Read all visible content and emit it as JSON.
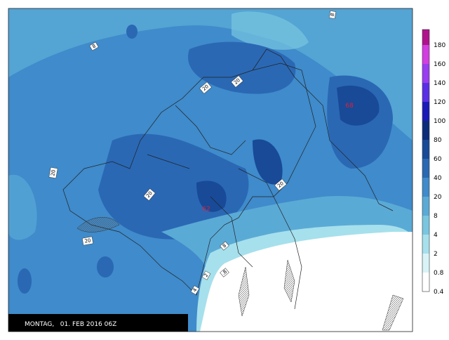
{
  "caption": "MONTAG,   01. FEB 2016 06Z",
  "colorbar": [
    {
      "label": "0.4",
      "color": "#ffffff"
    },
    {
      "label": "0.8",
      "color": "#d8f3f8"
    },
    {
      "label": "2",
      "color": "#a6e0ec"
    },
    {
      "label": "4",
      "color": "#79c6e0"
    },
    {
      "label": "8",
      "color": "#5aaad6"
    },
    {
      "label": "20",
      "color": "#3f8bcb"
    },
    {
      "label": "40",
      "color": "#2a68b4"
    },
    {
      "label": "60",
      "color": "#184a98"
    },
    {
      "label": "80",
      "color": "#0a2c7a"
    },
    {
      "label": "100",
      "color": "#1a1ab8"
    },
    {
      "label": "120",
      "color": "#5a2ee6"
    },
    {
      "label": "140",
      "color": "#9a3cf2"
    },
    {
      "label": "160",
      "color": "#d23ee0"
    },
    {
      "label": "180",
      "color": "#b0128c"
    }
  ],
  "contour_labels": [
    "8",
    "8",
    "20",
    "20",
    "20",
    "20",
    "20",
    "20",
    "8",
    ".8",
    "2",
    "4"
  ],
  "maxima": [
    "68",
    "62"
  ]
}
